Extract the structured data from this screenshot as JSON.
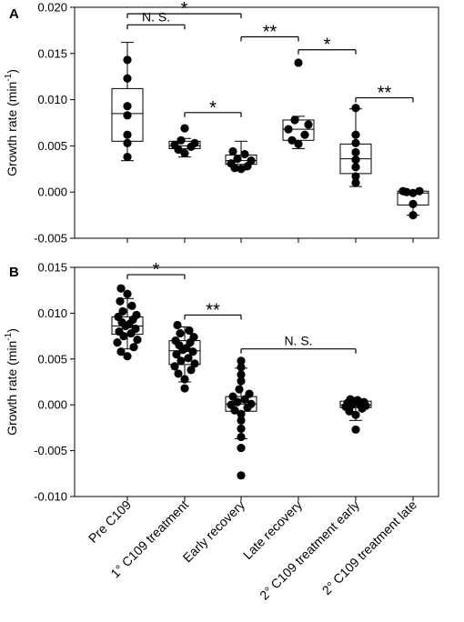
{
  "chart_data": [
    {
      "type": "box",
      "panel_label": "A",
      "ylabel": "Growth rate (min",
      "ylabel_sup": "-1",
      "ylabel_close": ")",
      "ylim": [
        -0.005,
        0.02
      ],
      "yticks": [
        -0.005,
        0.0,
        0.005,
        0.01,
        0.015,
        0.02
      ],
      "ytick_labels": [
        "-0.005",
        "0.000",
        "0.005",
        "0.010",
        "0.015",
        "0.020"
      ],
      "categories": [
        "Pre C109",
        "1° C109 treatment",
        "Early recovery",
        "Late recovery",
        "2° C109 treatment early",
        "2° C109 treatment late"
      ],
      "boxes": [
        {
          "q1": 0.0055,
          "median": 0.0085,
          "q3": 0.0112,
          "whisker_low": 0.0034,
          "whisker_high": 0.0162,
          "points": [
            0.0143,
            0.0123,
            0.0093,
            0.0083,
            0.0062,
            0.0053,
            0.0038
          ]
        },
        {
          "q1": 0.0047,
          "median": 0.005,
          "q3": 0.0055,
          "whisker_low": 0.0038,
          "whisker_high": 0.0058,
          "points": [
            0.0069,
            0.0056,
            0.0053,
            0.0051,
            0.0049,
            0.0046,
            0.0042
          ]
        },
        {
          "q1": 0.003,
          "median": 0.0034,
          "q3": 0.004,
          "whisker_low": 0.0024,
          "whisker_high": 0.0055,
          "points": [
            0.0044,
            0.0041,
            0.0036,
            0.0034,
            0.0031,
            0.0028,
            0.0025,
            0.0026
          ]
        },
        {
          "q1": 0.0056,
          "median": 0.0068,
          "q3": 0.0078,
          "whisker_low": 0.0047,
          "whisker_high": 0.0082,
          "points": [
            0.014,
            0.0078,
            0.0073,
            0.0068,
            0.0062,
            0.0056,
            0.0052
          ]
        },
        {
          "q1": 0.002,
          "median": 0.0036,
          "q3": 0.0052,
          "whisker_low": 0.0006,
          "whisker_high": 0.009,
          "points": [
            0.0091,
            0.0062,
            0.0053,
            0.0043,
            0.0035,
            0.0027,
            0.0017,
            0.001
          ]
        },
        {
          "q1": -0.0014,
          "median": -0.0001,
          "q3": 0.0001,
          "whisker_low": -0.0025,
          "whisker_high": 0.0001,
          "points": [
            0.0001,
            0.0001,
            -0.0001,
            0.0,
            -0.0013,
            -0.0025
          ]
        }
      ],
      "significance": [
        {
          "from": 0,
          "to": 1,
          "label": "N. S.",
          "y": 0.0181,
          "type": "ns"
        },
        {
          "from": 0,
          "to": 2,
          "label": "*",
          "y": 0.0193,
          "type": "sig"
        },
        {
          "from": 1,
          "to": 2,
          "label": "*",
          "y": 0.0086,
          "type": "sig"
        },
        {
          "from": 2,
          "to": 3,
          "label": "**",
          "y": 0.0168,
          "type": "sig"
        },
        {
          "from": 3,
          "to": 4,
          "label": "*",
          "y": 0.0154,
          "type": "sig"
        },
        {
          "from": 4,
          "to": 5,
          "label": "**",
          "y": 0.0102,
          "type": "sig"
        }
      ]
    },
    {
      "type": "box",
      "panel_label": "B",
      "ylabel": "Growth rate (min",
      "ylabel_sup": "-1",
      "ylabel_close": ")",
      "ylim": [
        -0.01,
        0.015
      ],
      "yticks": [
        -0.01,
        -0.005,
        0.0,
        0.005,
        0.01,
        0.015
      ],
      "ytick_labels": [
        "-0.010",
        "-0.005",
        "0.000",
        "0.005",
        "0.010",
        "0.015"
      ],
      "categories": [
        "Pre C109",
        "1° C109 treatment",
        "Early recovery",
        "Late recovery",
        "2° C109 treatment early",
        "2° C109 treatment late"
      ],
      "boxes": [
        {
          "q1": 0.0077,
          "median": 0.0086,
          "q3": 0.0096,
          "whisker_low": 0.0061,
          "whisker_high": 0.0116,
          "points": [
            0.0127,
            0.0121,
            0.0113,
            0.0108,
            0.0102,
            0.0098,
            0.0096,
            0.0093,
            0.009,
            0.0088,
            0.0086,
            0.0083,
            0.008,
            0.0078,
            0.0075,
            0.0071,
            0.0068,
            0.0063,
            0.0058,
            0.0053
          ]
        },
        {
          "q1": 0.0044,
          "median": 0.0059,
          "q3": 0.007,
          "whisker_low": 0.0025,
          "whisker_high": 0.0085,
          "points": [
            0.0087,
            0.0081,
            0.0078,
            0.0074,
            0.007,
            0.0068,
            0.0065,
            0.0062,
            0.006,
            0.0058,
            0.0055,
            0.0051,
            0.0048,
            0.0045,
            0.0042,
            0.0038,
            0.0034,
            0.0028,
            0.0018
          ]
        },
        {
          "q1": -0.0007,
          "median": 0.0001,
          "q3": 0.0009,
          "whisker_low": -0.0037,
          "whisker_high": 0.004,
          "points": [
            0.0048,
            0.0041,
            0.0033,
            0.0026,
            0.0017,
            0.0012,
            0.0009,
            0.0006,
            0.0003,
            0.0001,
            0.0,
            -0.0003,
            -0.0006,
            -0.001,
            -0.0017,
            -0.0026,
            -0.0035,
            -0.0047,
            -0.0077
          ]
        },
        {
          "empty": true
        },
        {
          "q1": -0.0003,
          "median": 0.0,
          "q3": 0.0004,
          "whisker_low": -0.0017,
          "whisker_high": 0.0006,
          "points": [
            0.0006,
            0.0005,
            0.0004,
            0.0003,
            0.0002,
            0.0001,
            0.0,
            -0.0001,
            -0.0002,
            -0.0004,
            -0.0007,
            -0.0011,
            -0.0027
          ]
        },
        {
          "empty": true
        }
      ],
      "significance": [
        {
          "from": 0,
          "to": 1,
          "label": "*",
          "y": 0.0142,
          "type": "sig"
        },
        {
          "from": 1,
          "to": 2,
          "label": "**",
          "y": 0.0098,
          "type": "sig"
        },
        {
          "from": 2,
          "to": 4,
          "label": "N. S.",
          "y": 0.0061,
          "type": "ns"
        }
      ]
    }
  ]
}
